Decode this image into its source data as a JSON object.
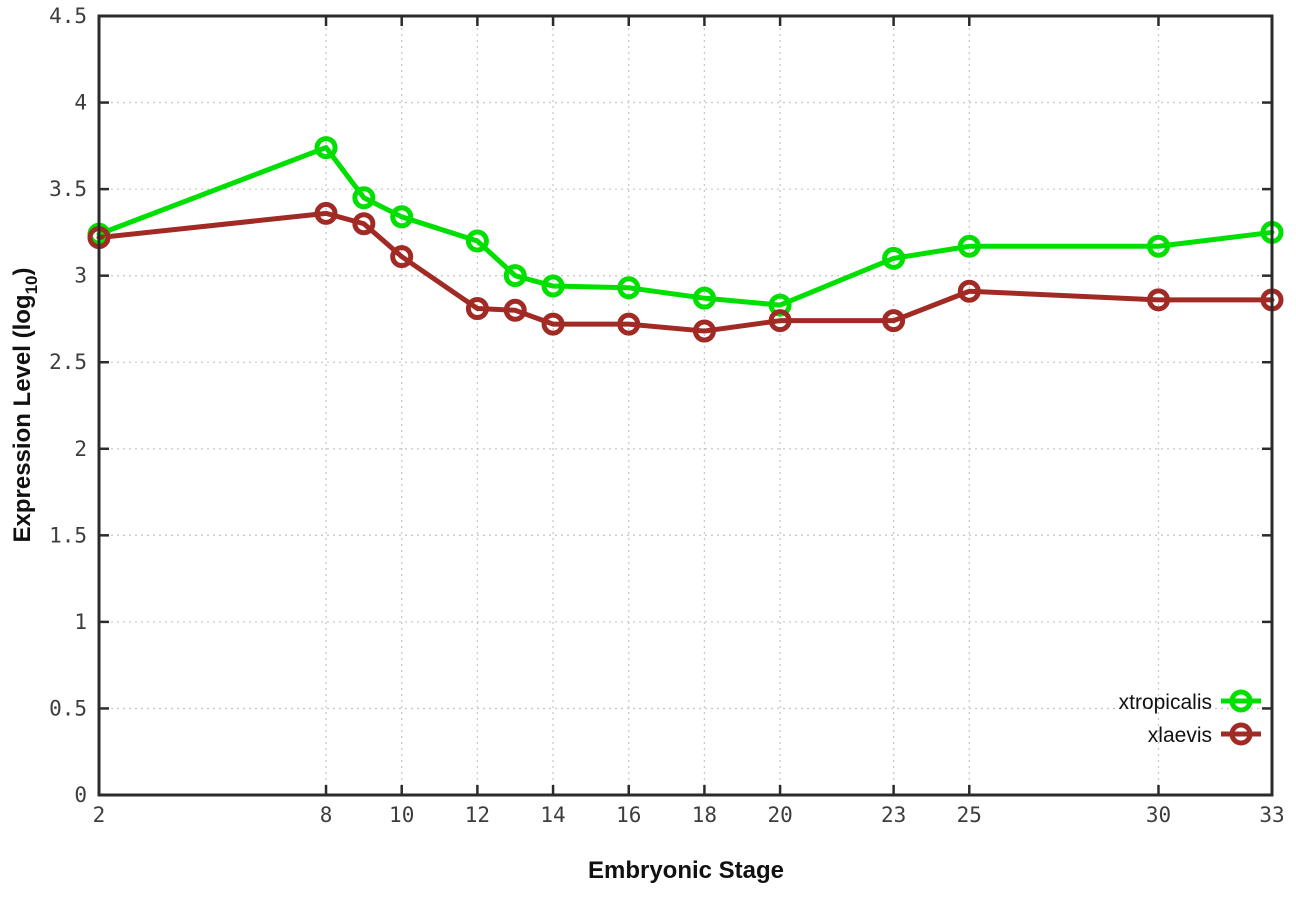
{
  "chart_data": {
    "type": "line",
    "title": "",
    "xlabel": "Embryonic Stage",
    "ylabel": {
      "main": "Expression Level (log",
      "sub": "10",
      "end": ")"
    },
    "xlim": [
      2,
      33
    ],
    "ylim": [
      0,
      4.5
    ],
    "x_ticks": [
      2,
      8,
      10,
      12,
      14,
      16,
      18,
      20,
      23,
      25,
      30,
      33
    ],
    "y_ticks": [
      0,
      0.5,
      1,
      1.5,
      2,
      2.5,
      3,
      3.5,
      4,
      4.5
    ],
    "grid": true,
    "legend_position": "bottom-right",
    "x": [
      2,
      8,
      9,
      10,
      12,
      13,
      14,
      16,
      18,
      20,
      23,
      25,
      30,
      33
    ],
    "series": [
      {
        "name": "xtropicalis",
        "color": "#00e000",
        "values": [
          3.24,
          3.74,
          3.45,
          3.34,
          3.2,
          3.0,
          2.94,
          2.93,
          2.87,
          2.83,
          3.1,
          3.17,
          3.17,
          3.25
        ]
      },
      {
        "name": "xlaevis",
        "color": "#a12a25",
        "values": [
          3.22,
          3.36,
          3.3,
          3.11,
          2.81,
          2.8,
          2.72,
          2.72,
          2.68,
          2.74,
          2.74,
          2.91,
          2.86,
          2.86
        ]
      }
    ],
    "style": {
      "background": "#ffffff",
      "border_color": "#2b2b2b",
      "grid_color": "#c9c9c9",
      "tick_color": "#2b2b2b",
      "line_width": 5,
      "marker_radius": 9,
      "marker_stroke": 5
    }
  }
}
